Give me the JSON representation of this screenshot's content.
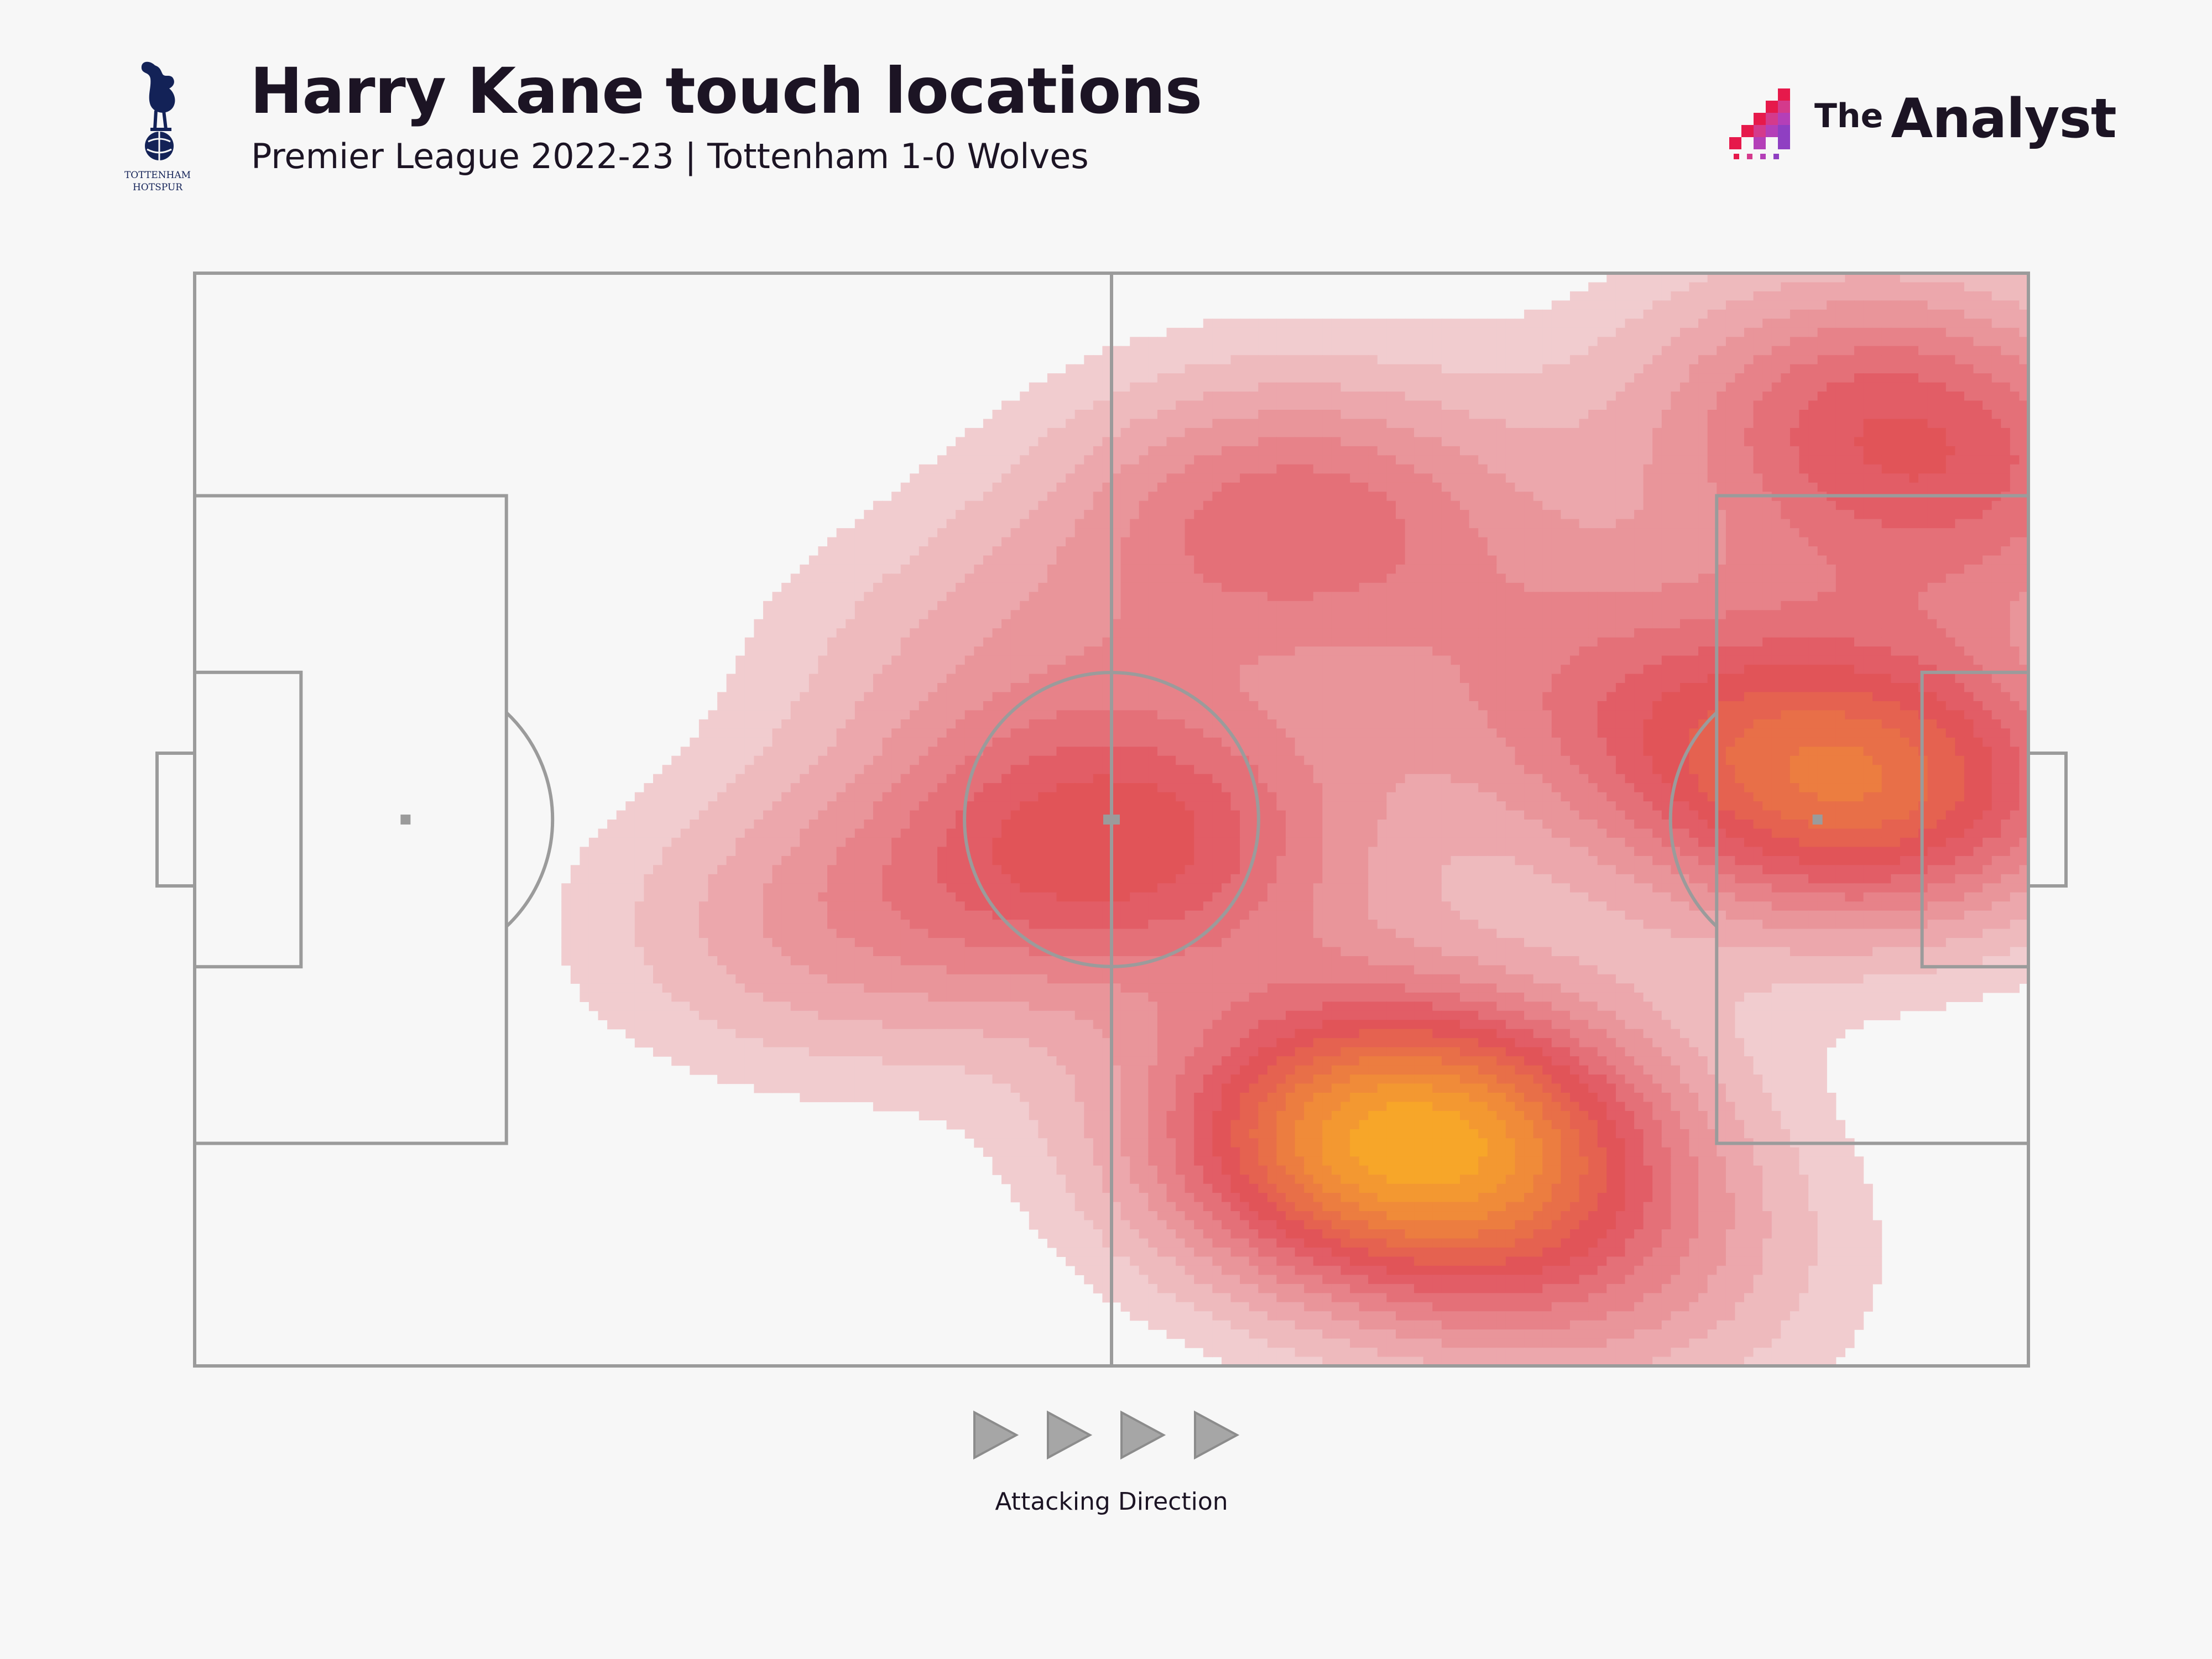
{
  "header": {
    "title": "Harry Kane touch locations",
    "subtitle": "Premier League 2022-23 | Tottenham 1-0 Wolves",
    "club": "TOTTENHAM HOTSPUR",
    "crest_icon": "cockerel-crest-icon",
    "brand": {
      "prefix": "The",
      "name": "Analyst",
      "icon": "pixel-bars-logo-icon"
    }
  },
  "chart_data": {
    "type": "heatmap",
    "title": "Harry Kane touch locations",
    "subtitle": "Premier League 2022-23 | Tottenham 1-0 Wolves",
    "x_range": [
      0,
      100
    ],
    "y_range": [
      0,
      100
    ],
    "hotspots": [
      {
        "x": 66,
        "y": 79,
        "intensity": 1.0
      },
      {
        "x": 91,
        "y": 47,
        "intensity": 0.72
      },
      {
        "x": 51,
        "y": 52,
        "intensity": 0.55
      },
      {
        "x": 60,
        "y": 22,
        "intensity": 0.45
      },
      {
        "x": 91,
        "y": 12,
        "intensity": 0.42
      },
      {
        "x": 77,
        "y": 38,
        "intensity": 0.3
      },
      {
        "x": 35,
        "y": 60,
        "intensity": 0.26
      },
      {
        "x": 98,
        "y": 22,
        "intensity": 0.28
      },
      {
        "x": 76,
        "y": 92,
        "intensity": 0.26
      },
      {
        "x": 44,
        "y": 35,
        "intensity": 0.18
      }
    ],
    "colors": {
      "low": "#f3dfe0",
      "mid": "#e0505a",
      "high": "#f7a629",
      "pitch_lines": "#9b9b9b",
      "background": "#f7f7f7"
    },
    "grid": false,
    "legend": "none"
  },
  "footer": {
    "attacking_direction": "Attacking Direction",
    "arrow_icon": "play-triangle-icon",
    "arrow_count": 4
  }
}
